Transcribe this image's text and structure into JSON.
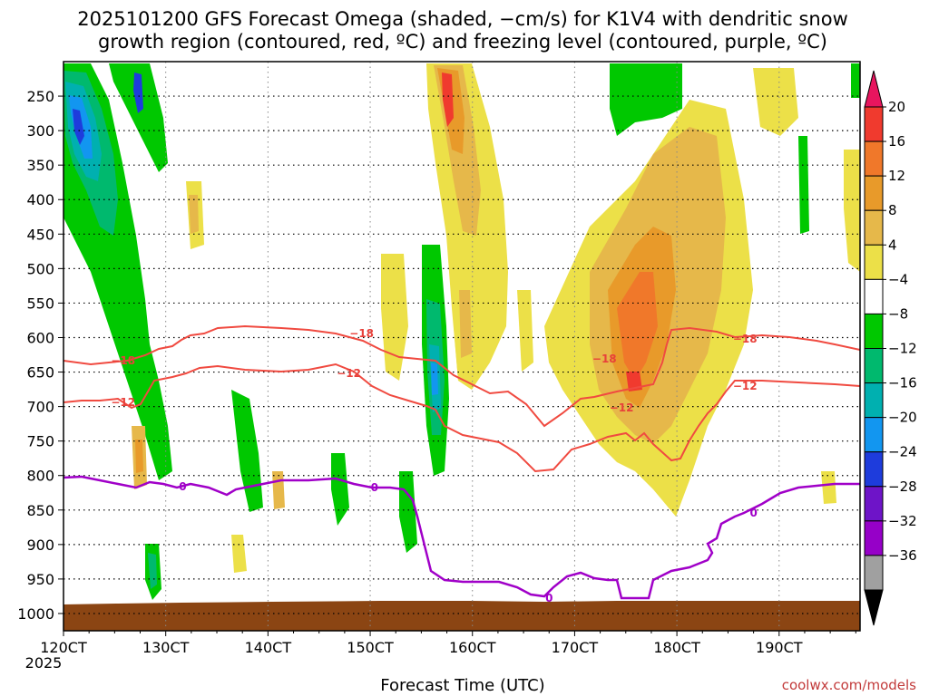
{
  "chart_data": {
    "type": "heatmap",
    "title_lines": [
      "2025101200 GFS Forecast Omega (shaded, −cm/s) for K1V4 with dendritic snow",
      "growth region (contoured, red, ºC) and freezing level (contoured, purple, ºC)"
    ],
    "xlabel": "Forecast Time (UTC)",
    "ylabel": "",
    "x_ticks": [
      "120CT",
      "130CT",
      "140CT",
      "150CT",
      "160CT",
      "170CT",
      "180CT",
      "190CT"
    ],
    "x_tick_sub": "2025",
    "x_range_hours": [
      0,
      187
    ],
    "y_ticks": [
      250,
      300,
      350,
      400,
      450,
      500,
      550,
      600,
      650,
      700,
      750,
      800,
      850,
      900,
      950,
      1000
    ],
    "y_range_hPa": [
      200,
      1025
    ],
    "colorbar": {
      "levels": [
        20,
        16,
        12,
        8,
        4,
        -4,
        -8,
        -12,
        -16,
        -20,
        -24,
        -28,
        -32,
        -36
      ],
      "labels": [
        "20",
        "16",
        "12",
        "8",
        "4",
        "−4",
        "−8",
        "−12",
        "−16",
        "−20",
        "−24",
        "−28",
        "−32",
        "−36"
      ],
      "colors": [
        "#e8155e",
        "#f03a2e",
        "#f0782a",
        "#e89a2a",
        "#e6b84a",
        "#ece048",
        "#ffffff",
        "#00c800",
        "#00b96e",
        "#00b0b0",
        "#1296f0",
        "#1e3cdc",
        "#6e14c8",
        "#9600c8",
        "#a0a0a0",
        "#000000"
      ]
    },
    "contours": [
      {
        "name": "-18",
        "color": "red",
        "label_hours": [
          14,
          70,
          127,
          160
        ]
      },
      {
        "name": "-12",
        "color": "red",
        "label_hours": [
          14,
          67,
          131,
          160
        ]
      },
      {
        "name": "0",
        "color": "purple",
        "label_hours": [
          28,
          73,
          114,
          162
        ]
      }
    ],
    "credit": "coolwx.com/models"
  }
}
